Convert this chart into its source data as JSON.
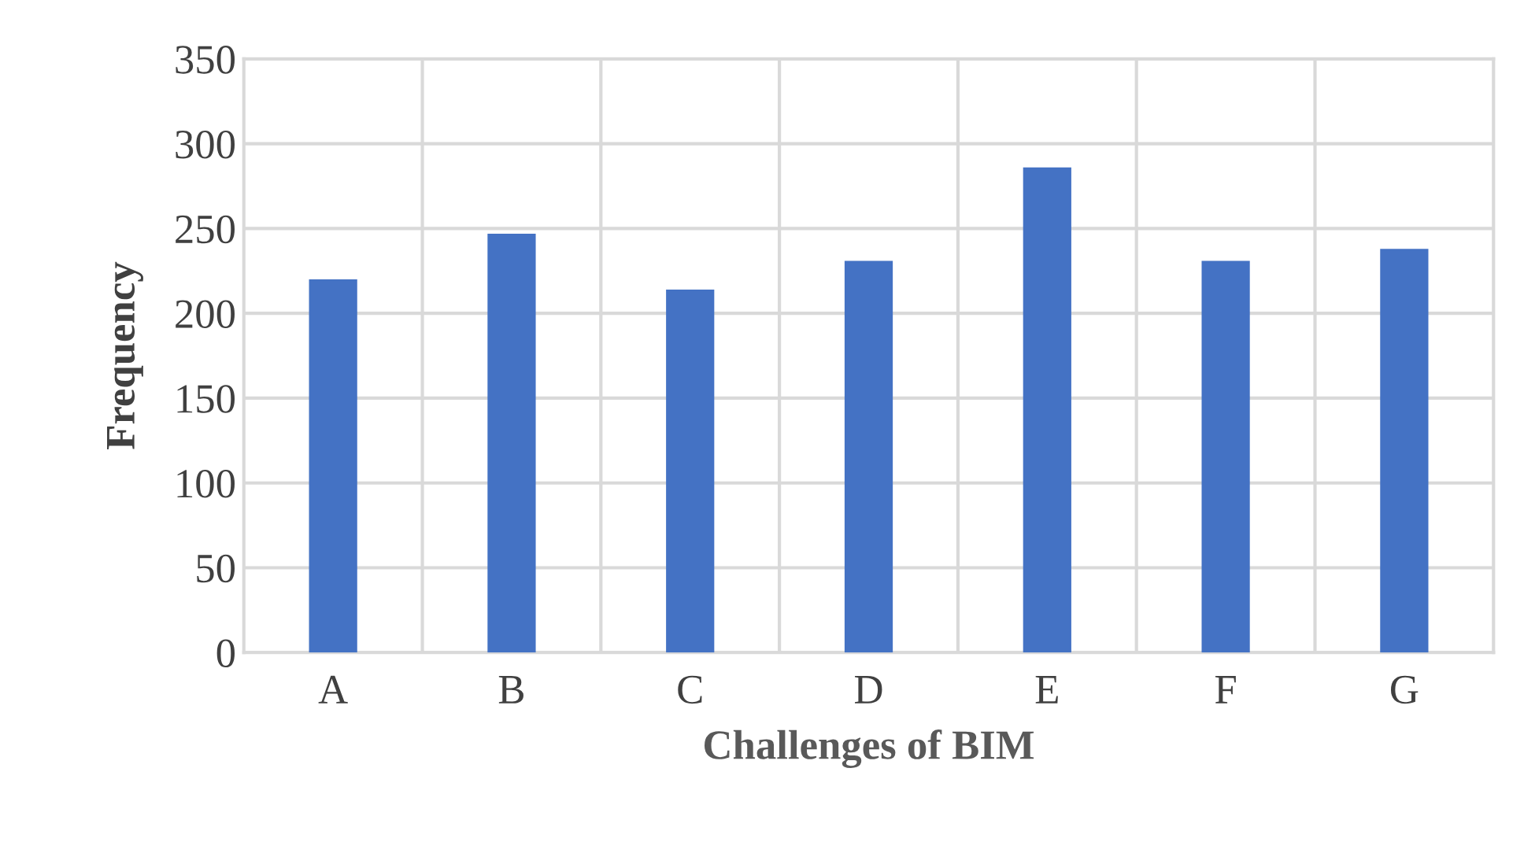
{
  "chart_data": {
    "type": "bar",
    "xlabel": "Challenges of BIM",
    "ylabel": "Frequency",
    "categories": [
      "A",
      "B",
      "C",
      "D",
      "E",
      "F",
      "G"
    ],
    "values": [
      220,
      247,
      214,
      231,
      286,
      231,
      238
    ],
    "color": "#4472c4",
    "ylim": [
      0,
      350
    ],
    "yticks": [
      0,
      50,
      100,
      150,
      200,
      250,
      300,
      350
    ],
    "grid": true
  }
}
